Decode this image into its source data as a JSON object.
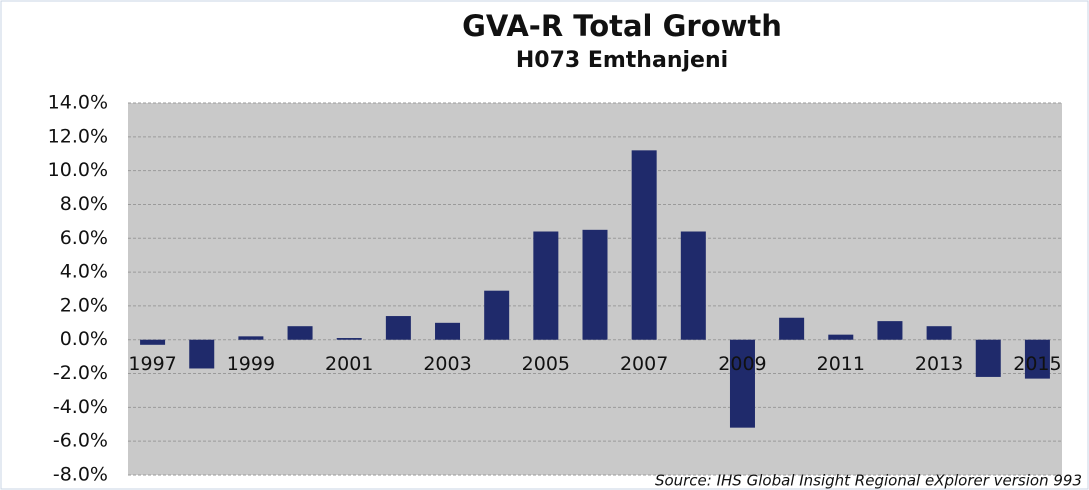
{
  "chart_data": {
    "type": "bar",
    "title": "GVA-R Total Growth",
    "subtitle": "H073 Emthanjeni",
    "source": "Source: IHS Global Insight Regional eXplorer version 993",
    "categories": [
      "1997",
      null,
      "1999",
      null,
      "2001",
      null,
      "2003",
      null,
      "2005",
      null,
      "2007",
      null,
      "2009",
      null,
      "2011",
      null,
      "2013",
      null,
      "2015"
    ],
    "values": [
      -0.3,
      -1.7,
      0.2,
      0.8,
      0.1,
      1.4,
      1.0,
      2.9,
      6.4,
      6.5,
      11.2,
      6.4,
      -5.2,
      1.3,
      0.3,
      1.1,
      0.8,
      -2.2,
      -2.3
    ],
    "color": "#1f2a6b",
    "ylim": [
      -8,
      14
    ],
    "yticks": [
      {
        "value": -8,
        "label": "-8.0%"
      },
      {
        "value": -6,
        "label": "-6.0%"
      },
      {
        "value": -4,
        "label": "-4.0%"
      },
      {
        "value": -2,
        "label": "-2.0%"
      },
      {
        "value": 0,
        "label": "0.0%"
      },
      {
        "value": 2,
        "label": "2.0%"
      },
      {
        "value": 4,
        "label": "4.0%"
      },
      {
        "value": 6,
        "label": "6.0%"
      },
      {
        "value": 8,
        "label": "8.0%"
      },
      {
        "value": 10,
        "label": "10.0%"
      },
      {
        "value": 12,
        "label": "12.0%"
      },
      {
        "value": 14,
        "label": "14.0%"
      }
    ],
    "grid": true
  }
}
